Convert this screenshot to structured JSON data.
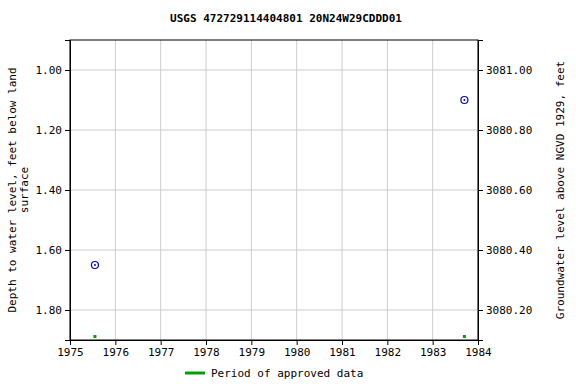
{
  "chart_data": {
    "type": "scatter",
    "title": "USGS 472729114404801 20N24W29CDDD01",
    "y_label": [
      "Depth to water level, feet below land",
      "surface"
    ],
    "y2_label": "Groundwater level above NGVD 1929, feet",
    "x": [
      1975.55,
      1983.7
    ],
    "values": [
      1.65,
      1.1
    ],
    "color": "#0000cc",
    "marker": "circle",
    "xlim": [
      1975,
      1984
    ],
    "xticks": [
      1975,
      1976,
      1977,
      1978,
      1979,
      1980,
      1981,
      1982,
      1983,
      1984
    ],
    "ylim": [
      1.9,
      0.9
    ],
    "yticks": [
      {
        "value": 1.0,
        "label": "1.00"
      },
      {
        "value": 1.2,
        "label": "1.20"
      },
      {
        "value": 1.4,
        "label": "1.40"
      },
      {
        "value": 1.6,
        "label": "1.60"
      },
      {
        "value": 1.8,
        "label": "1.80"
      }
    ],
    "y2lim": [
      3080.1,
      3081.1
    ],
    "y2ticks": [
      {
        "value": 3080.2,
        "label": "3080.20"
      },
      {
        "value": 3080.4,
        "label": "3080.40"
      },
      {
        "value": 3080.6,
        "label": "3080.60"
      },
      {
        "value": 3080.8,
        "label": "3080.80"
      },
      {
        "value": 3081.0,
        "label": "3081.00"
      }
    ],
    "grid": true,
    "legend": "bottom",
    "approved_periods": {
      "name": "Period of approved data",
      "color": "#00a000",
      "x": [
        1975.55,
        1983.7
      ]
    }
  }
}
